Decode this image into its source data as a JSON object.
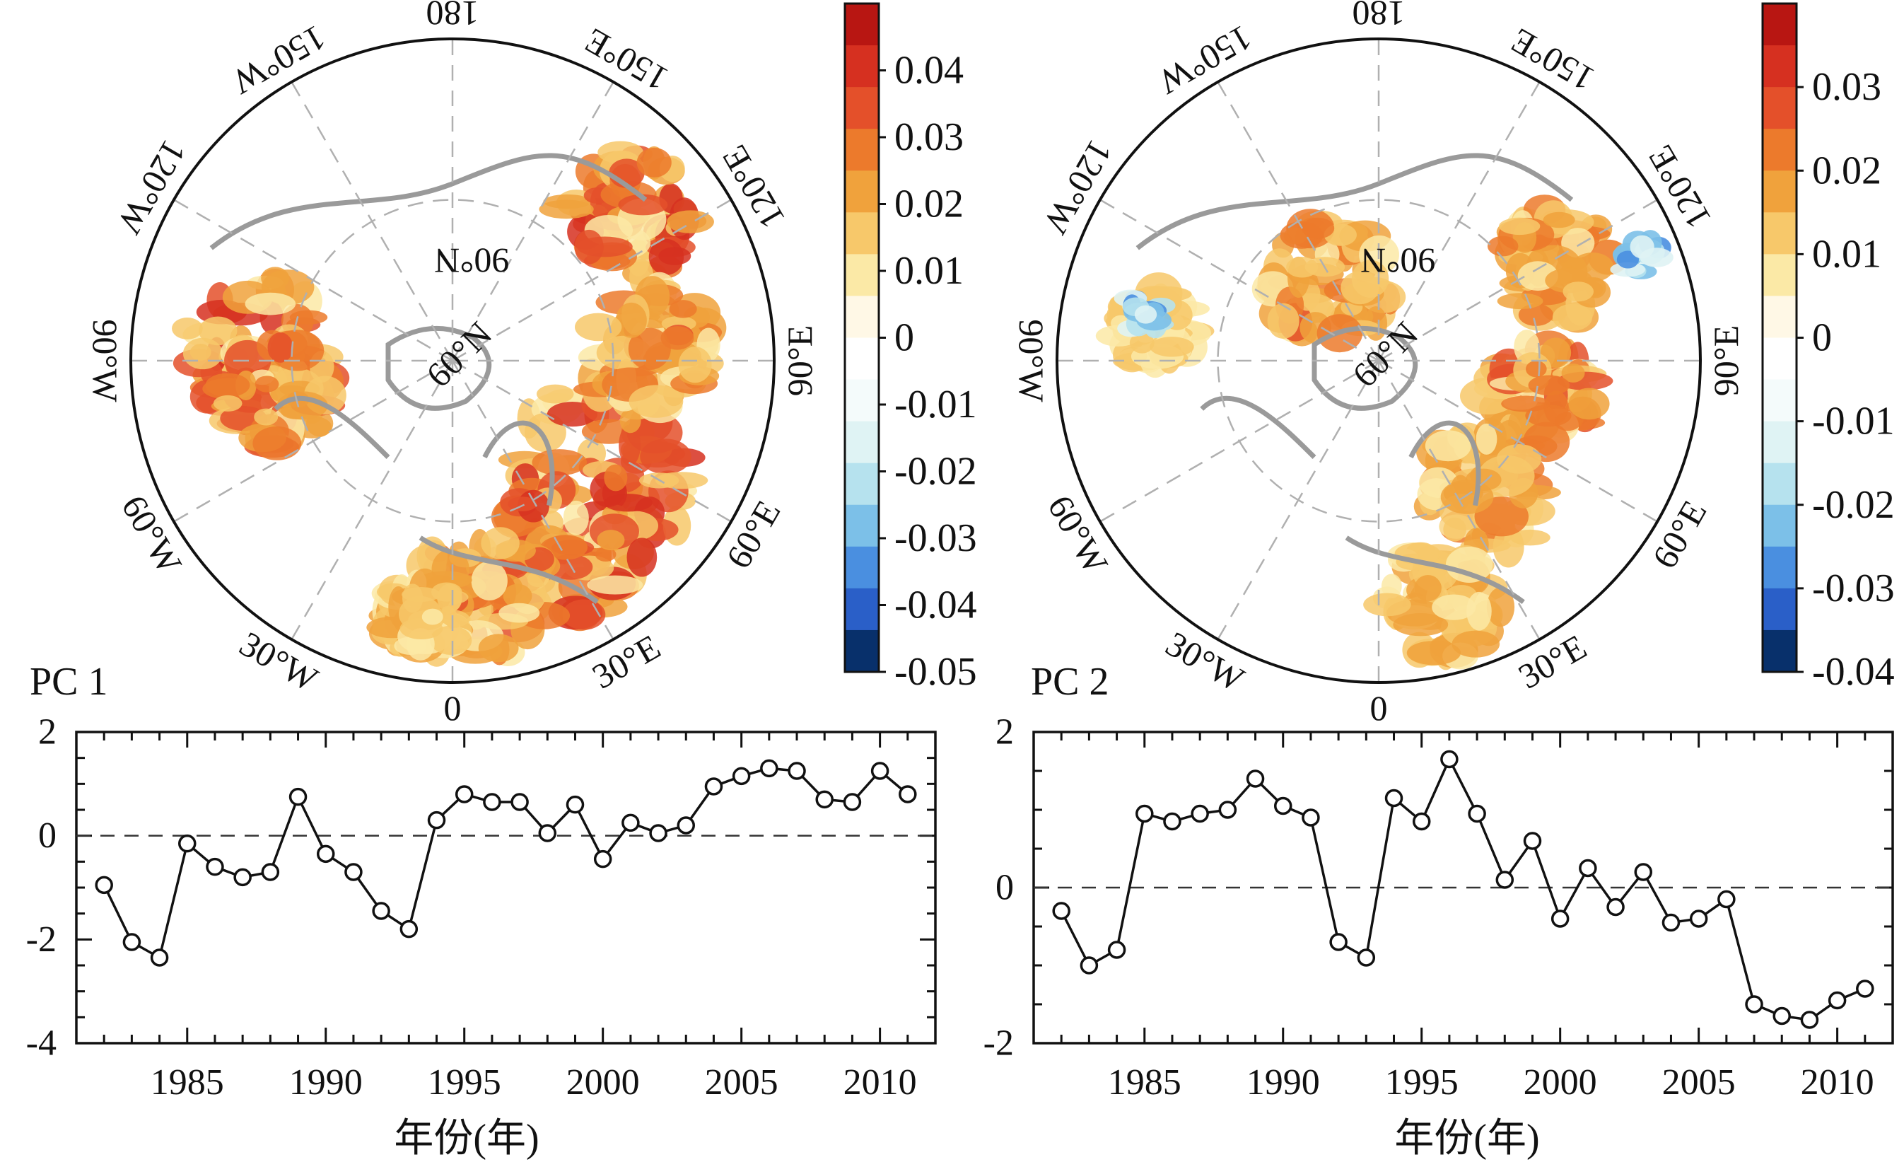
{
  "maps": [
    {
      "lon_labels": [
        "0",
        "30°E",
        "60°E",
        "90°E",
        "120°E",
        "150°E",
        "180",
        "150°W",
        "120°W",
        "90°W",
        "60°W",
        "30°W"
      ],
      "lat_labels": [
        "60°N",
        "90°N"
      ],
      "colorbar": {
        "ticks": [
          "0.04",
          "0.03",
          "0.02",
          "0.01",
          "0",
          "-0.01",
          "-0.02",
          "-0.03",
          "-0.04",
          "-0.05"
        ],
        "tick_values": [
          0.04,
          0.03,
          0.02,
          0.01,
          0,
          -0.01,
          -0.02,
          -0.03,
          -0.04,
          -0.05
        ],
        "range": [
          -0.05,
          0.05
        ],
        "colors": [
          "#08306b",
          "#2a5fc8",
          "#4a8fe0",
          "#7cc0e8",
          "#b6e2ee",
          "#dff3f4",
          "#f4fbfb",
          "#ffffff",
          "#fff8e6",
          "#fbe9a6",
          "#f7c86a",
          "#f0a23c",
          "#ec7a2c",
          "#e4502a",
          "#d63020",
          "#b81612"
        ]
      }
    },
    {
      "lon_labels": [
        "0",
        "30°E",
        "60°E",
        "90°E",
        "120°E",
        "150°E",
        "180",
        "150°W",
        "120°W",
        "90°W",
        "60°W",
        "30°W"
      ],
      "lat_labels": [
        "60°N",
        "90°N"
      ],
      "colorbar": {
        "ticks": [
          "0.03",
          "0.02",
          "0.01",
          "0",
          "-0.01",
          "-0.02",
          "-0.03",
          "-0.04"
        ],
        "tick_values": [
          0.03,
          0.02,
          0.01,
          0,
          -0.01,
          -0.02,
          -0.03,
          -0.04
        ],
        "range": [
          -0.04,
          0.04
        ],
        "colors": [
          "#08306b",
          "#2a5fc8",
          "#4a8fe0",
          "#7cc0e8",
          "#b6e2ee",
          "#dff3f4",
          "#f4fbfb",
          "#ffffff",
          "#fff8e6",
          "#fbe9a6",
          "#f7c86a",
          "#f0a23c",
          "#ec7a2c",
          "#e4502a",
          "#d63020",
          "#b81612"
        ]
      }
    }
  ],
  "chart_data": [
    {
      "type": "line",
      "label": "PC 1",
      "xlabel": "年份(年)",
      "x_ticks": [
        1985,
        1990,
        1995,
        2000,
        2005,
        2010
      ],
      "y_ticks": [
        2,
        0,
        -2,
        -4
      ],
      "xlim": [
        1981,
        2012
      ],
      "ylim": [
        -4,
        2
      ],
      "x": [
        1982,
        1983,
        1984,
        1985,
        1986,
        1987,
        1988,
        1989,
        1990,
        1991,
        1992,
        1993,
        1994,
        1995,
        1996,
        1997,
        1998,
        1999,
        2000,
        2001,
        2002,
        2003,
        2004,
        2005,
        2006,
        2007,
        2008,
        2009,
        2010,
        2011
      ],
      "y": [
        -0.95,
        -2.05,
        -2.35,
        -0.15,
        -0.6,
        -0.8,
        -0.7,
        0.75,
        -0.35,
        -0.7,
        -1.45,
        -1.8,
        0.3,
        0.8,
        0.65,
        0.65,
        0.05,
        0.6,
        -0.45,
        0.25,
        0.05,
        0.2,
        0.95,
        1.15,
        1.3,
        1.25,
        0.7,
        0.65,
        1.25,
        0.8
      ],
      "baseline": 0
    },
    {
      "type": "line",
      "label": "PC 2",
      "xlabel": "年份(年)",
      "x_ticks": [
        1985,
        1990,
        1995,
        2000,
        2005,
        2010
      ],
      "y_ticks": [
        2,
        0,
        -2
      ],
      "xlim": [
        1981,
        2012
      ],
      "ylim": [
        -2,
        2
      ],
      "x": [
        1982,
        1983,
        1984,
        1985,
        1986,
        1987,
        1988,
        1989,
        1990,
        1991,
        1992,
        1993,
        1994,
        1995,
        1996,
        1997,
        1998,
        1999,
        2000,
        2001,
        2002,
        2003,
        2004,
        2005,
        2006,
        2007,
        2008,
        2009,
        2010,
        2011
      ],
      "y": [
        -0.3,
        -1.0,
        -0.8,
        0.95,
        0.85,
        0.95,
        1.0,
        1.4,
        1.05,
        0.9,
        -0.7,
        -0.9,
        1.15,
        0.85,
        1.65,
        0.95,
        0.1,
        0.6,
        -0.4,
        0.25,
        -0.25,
        0.2,
        -0.45,
        -0.4,
        -0.15,
        -1.5,
        -1.65,
        -1.7,
        -1.45,
        -1.3
      ],
      "baseline": 0
    }
  ]
}
